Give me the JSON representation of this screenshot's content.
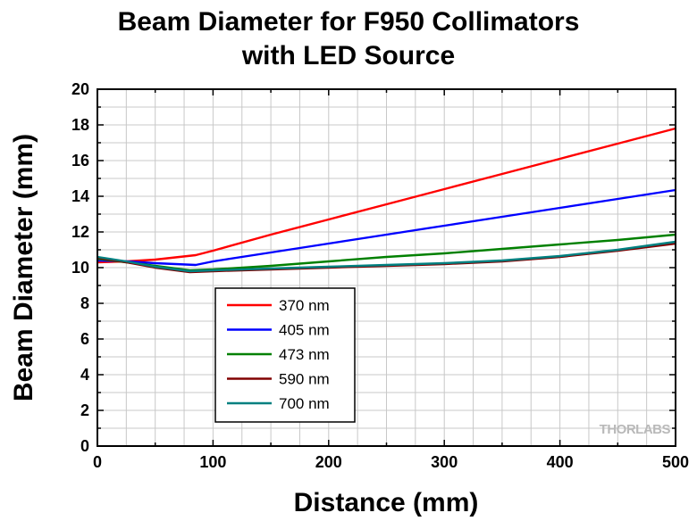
{
  "chart_data": {
    "type": "line",
    "title_lines": [
      "Beam Diameter for F950 Collimators",
      "with LED Source"
    ],
    "xlabel": "Distance (mm)",
    "ylabel": "Beam Diameter (mm)",
    "xlim": [
      0,
      500
    ],
    "ylim": [
      0,
      20
    ],
    "xticks": [
      0,
      100,
      200,
      300,
      400,
      500
    ],
    "yticks": [
      0,
      2,
      4,
      6,
      8,
      10,
      12,
      14,
      16,
      18,
      20
    ],
    "grid": true,
    "legend_position": "lower-left",
    "watermark": "THORLABS",
    "series": [
      {
        "name": "370 nm",
        "color": "#ff0000",
        "x": [
          0,
          25,
          50,
          85,
          100,
          150,
          200,
          250,
          300,
          350,
          400,
          450,
          500
        ],
        "y": [
          10.3,
          10.35,
          10.45,
          10.7,
          10.95,
          11.85,
          12.7,
          13.55,
          14.4,
          15.25,
          16.1,
          16.95,
          17.8
        ]
      },
      {
        "name": "405 nm",
        "color": "#0000ff",
        "x": [
          0,
          25,
          50,
          85,
          100,
          150,
          200,
          250,
          300,
          350,
          400,
          450,
          500
        ],
        "y": [
          10.4,
          10.35,
          10.25,
          10.15,
          10.35,
          10.85,
          11.35,
          11.85,
          12.35,
          12.85,
          13.35,
          13.85,
          14.35
        ]
      },
      {
        "name": "473 nm",
        "color": "#008000",
        "x": [
          0,
          25,
          50,
          80,
          100,
          150,
          200,
          250,
          300,
          350,
          400,
          450,
          500
        ],
        "y": [
          10.5,
          10.3,
          10.1,
          9.85,
          9.9,
          10.1,
          10.35,
          10.6,
          10.8,
          11.05,
          11.3,
          11.55,
          11.85
        ]
      },
      {
        "name": "590 nm",
        "color": "#800000",
        "x": [
          0,
          25,
          50,
          80,
          100,
          150,
          200,
          250,
          300,
          350,
          400,
          450,
          500
        ],
        "y": [
          10.55,
          10.3,
          10.0,
          9.75,
          9.8,
          9.9,
          10.0,
          10.1,
          10.2,
          10.35,
          10.6,
          10.95,
          11.35
        ]
      },
      {
        "name": "700 nm",
        "color": "#008080",
        "x": [
          0,
          25,
          50,
          80,
          100,
          150,
          200,
          250,
          300,
          350,
          400,
          450,
          500
        ],
        "y": [
          10.6,
          10.35,
          10.05,
          9.8,
          9.85,
          9.95,
          10.05,
          10.15,
          10.25,
          10.4,
          10.65,
          11.0,
          11.45
        ]
      }
    ]
  }
}
